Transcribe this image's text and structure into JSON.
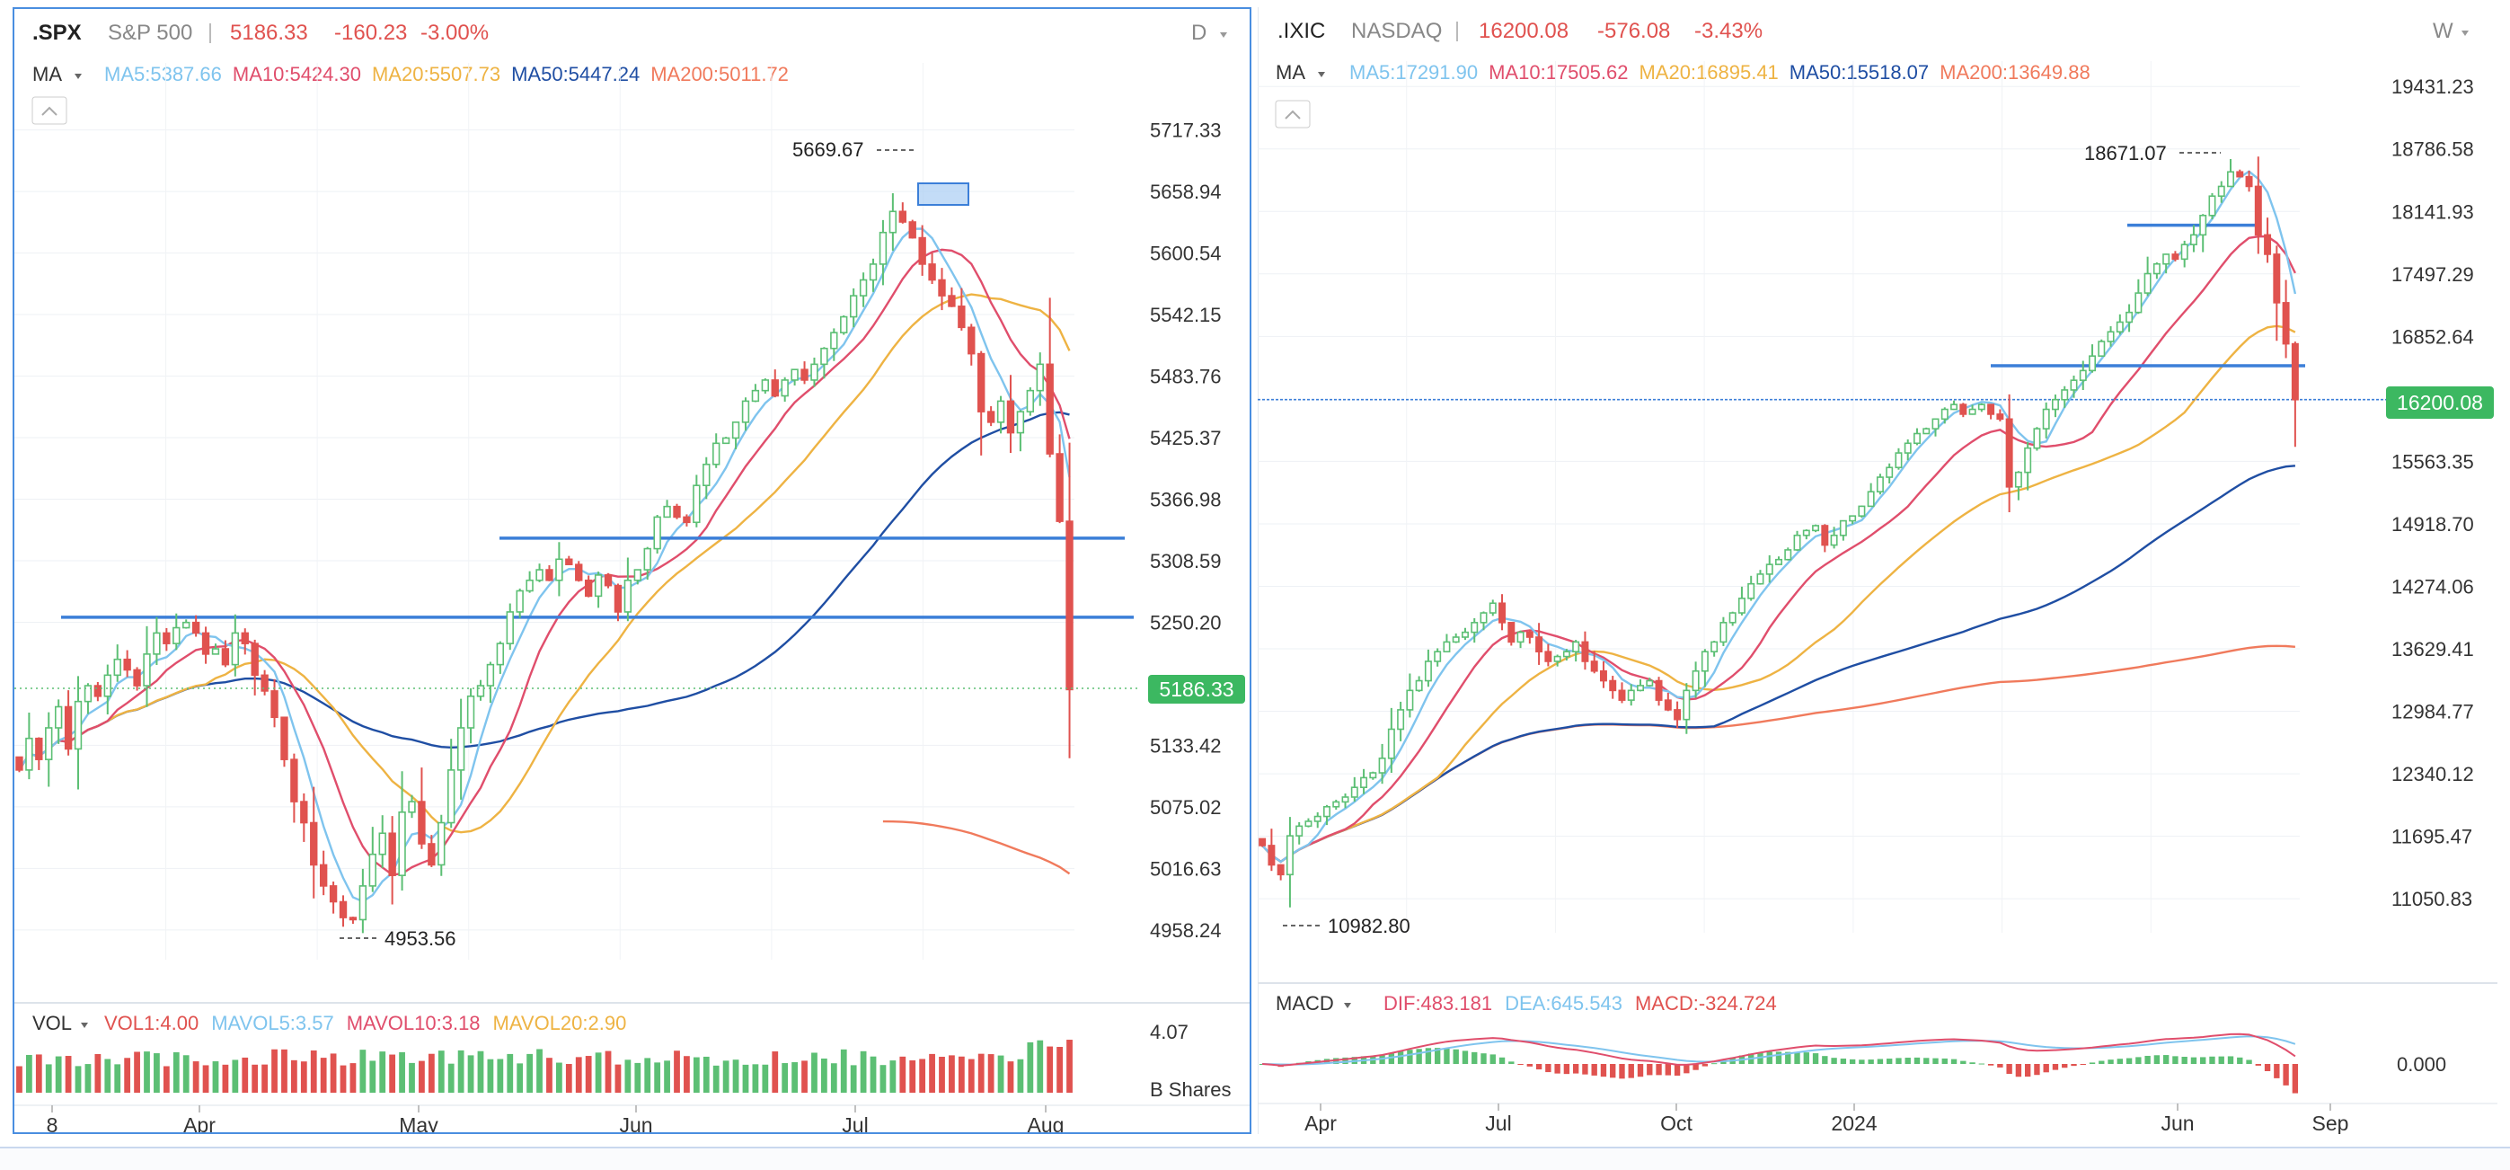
{
  "colors": {
    "up": "#5cbf74",
    "down": "#e0524f",
    "ma5": "#7fc4ee",
    "ma10": "#e04e6c",
    "ma20": "#eeb343",
    "ma50": "#1f4ea3",
    "ma200": "#f07a5c",
    "hline": "#3c7fd8",
    "last_bg": "#3cb861",
    "macd_dif": "#e04e6c",
    "macd_dea": "#7fc4ee"
  },
  "left": {
    "symbol": ".SPX",
    "name": "S&P 500",
    "price": "5186.33",
    "change": "-160.23",
    "change_pct": "-3.00%",
    "period": "D",
    "ma_label": "MA",
    "ma_legend": [
      {
        "key": "ma5",
        "text": "MA5:5387.66"
      },
      {
        "key": "ma10",
        "text": "MA10:5424.30"
      },
      {
        "key": "ma20",
        "text": "MA20:5507.73"
      },
      {
        "key": "ma50",
        "text": "MA50:5447.24"
      },
      {
        "key": "ma200",
        "text": "MA200:5011.72"
      }
    ],
    "vol_label": "VOL",
    "vol_legend": [
      {
        "key": "down",
        "text": "VOL1:4.00"
      },
      {
        "key": "ma5",
        "text": "MAVOL5:3.57"
      },
      {
        "key": "ma10",
        "text": "MAVOL10:3.18"
      },
      {
        "key": "ma20",
        "text": "MAVOL20:2.90"
      }
    ],
    "vol_axis_top": "4.07",
    "vol_unit": "B Shares",
    "last_price_tag": "5186.33",
    "high_label": "5669.67",
    "low_label": "4953.56",
    "x_labels": [
      "8",
      "Apr",
      "May",
      "Jun",
      "Jul",
      "Aug"
    ]
  },
  "right": {
    "symbol": ".IXIC",
    "name": "NASDAQ",
    "price": "16200.08",
    "change": "-576.08",
    "change_pct": "-3.43%",
    "period": "W",
    "ma_label": "MA",
    "ma_legend": [
      {
        "key": "ma5",
        "text": "MA5:17291.90"
      },
      {
        "key": "ma10",
        "text": "MA10:17505.62"
      },
      {
        "key": "ma20",
        "text": "MA20:16895.41"
      },
      {
        "key": "ma50",
        "text": "MA50:15518.07"
      },
      {
        "key": "ma200",
        "text": "MA200:13649.88"
      }
    ],
    "macd_label": "MACD",
    "macd_legend": [
      {
        "key": "macd_dif",
        "text": "DIF:483.181"
      },
      {
        "key": "macd_dea",
        "text": "DEA:645.543"
      },
      {
        "key": "down",
        "text": "MACD:-324.724"
      }
    ],
    "macd_axis": "0.000",
    "last_price_tag": "16200.08",
    "high_label": "18671.07",
    "low_label": "10982.80",
    "x_labels": [
      "Apr",
      "Jul",
      "Oct",
      "2024",
      "Jun",
      "Sep"
    ]
  },
  "chart_data": [
    {
      "type": "candlestick",
      "title": ".SPX S&P 500",
      "interval": "D",
      "y_ticks": [
        "5717.33",
        "5658.94",
        "5600.54",
        "5542.15",
        "5483.76",
        "5425.37",
        "5366.98",
        "5308.59",
        "5250.20",
        "5133.42",
        "5075.02",
        "5016.63",
        "4958.24"
      ],
      "ylim": [
        4930,
        5740
      ],
      "x_ticks": [
        "8",
        "Apr",
        "May",
        "Jun",
        "Jul",
        "Aug"
      ],
      "closes": [
        5110,
        5140,
        5120,
        5150,
        5170,
        5130,
        5175,
        5190,
        5180,
        5200,
        5215,
        5205,
        5190,
        5220,
        5240,
        5230,
        5245,
        5250,
        5240,
        5220,
        5225,
        5210,
        5240,
        5230,
        5200,
        5185,
        5160,
        5120,
        5080,
        5060,
        5020,
        5000,
        4985,
        4970,
        4968,
        5000,
        5030,
        5050,
        5010,
        5070,
        5080,
        5040,
        5020,
        5060,
        5110,
        5150,
        5180,
        5190,
        5210,
        5230,
        5260,
        5280,
        5290,
        5300,
        5290,
        5310,
        5305,
        5290,
        5275,
        5295,
        5285,
        5260,
        5290,
        5300,
        5320,
        5350,
        5360,
        5350,
        5345,
        5380,
        5400,
        5420,
        5425,
        5440,
        5460,
        5470,
        5480,
        5465,
        5480,
        5490,
        5480,
        5495,
        5510,
        5525,
        5540,
        5560,
        5575,
        5590,
        5620,
        5640,
        5630,
        5615,
        5590,
        5575,
        5560,
        5550,
        5530,
        5505,
        5450,
        5440,
        5460,
        5430,
        5450,
        5470,
        5495,
        5410,
        5346,
        5186.33
      ],
      "ma5_last": 5387.66,
      "ma10_last": 5424.3,
      "ma20_last": 5507.73,
      "ma50_last": 5447.24,
      "ma200_last": 5011.72,
      "horizontal_lines": [
        5255,
        5330
      ],
      "annotations": [
        {
          "text": "5669.67",
          "kind": "high"
        },
        {
          "text": "4953.56",
          "kind": "low"
        }
      ],
      "volume": {
        "unit": "B Shares",
        "axis_top": 4.07,
        "last": 4.0
      }
    },
    {
      "type": "candlestick",
      "title": ".IXIC NASDAQ",
      "interval": "W",
      "y_ticks": [
        "19431.23",
        "18786.58",
        "18141.93",
        "17497.29",
        "16852.64",
        "15563.35",
        "14918.70",
        "14274.06",
        "13629.41",
        "12984.77",
        "12340.12",
        "11695.47",
        "11050.83"
      ],
      "ylim": [
        10700,
        19600
      ],
      "x_ticks": [
        "Apr",
        "Jul",
        "Oct",
        "2024",
        "Jun",
        "Sep"
      ],
      "closes": [
        11600,
        11400,
        11300,
        11700,
        11800,
        11850,
        11900,
        12000,
        12050,
        12100,
        12200,
        12300,
        12350,
        12500,
        12800,
        13000,
        13200,
        13300,
        13500,
        13600,
        13700,
        13750,
        13800,
        13900,
        14000,
        14100,
        13900,
        13700,
        13800,
        13750,
        13600,
        13500,
        13550,
        13600,
        13700,
        13500,
        13400,
        13300,
        13200,
        13100,
        13200,
        13250,
        13300,
        13100,
        13000,
        12900,
        13200,
        13400,
        13600,
        13700,
        13900,
        14000,
        14150,
        14300,
        14400,
        14500,
        14550,
        14650,
        14800,
        14850,
        14900,
        14700,
        14800,
        14950,
        15000,
        15100,
        15250,
        15400,
        15500,
        15650,
        15750,
        15850,
        15900,
        16000,
        16100,
        16150,
        16050,
        16100,
        16150,
        16050,
        16000,
        15300,
        15450,
        15700,
        15900,
        16100,
        16200,
        16300,
        16400,
        16500,
        16650,
        16800,
        16900,
        17000,
        17100,
        17300,
        17500,
        17600,
        17700,
        17650,
        17800,
        17900,
        18100,
        18300,
        18400,
        18550,
        18500,
        18400,
        17900,
        17700,
        17200,
        16776,
        16200.08
      ],
      "ma5_last": 17291.9,
      "ma10_last": 17505.62,
      "ma20_last": 16895.41,
      "ma50_last": 15518.07,
      "ma200_last": 13649.88,
      "horizontal_lines": [
        18000,
        16550,
        16200.08
      ],
      "annotations": [
        {
          "text": "18671.07",
          "kind": "high"
        },
        {
          "text": "10982.80",
          "kind": "low"
        }
      ],
      "macd": {
        "dif": 483.181,
        "dea": 645.543,
        "macd": -324.724
      }
    }
  ]
}
